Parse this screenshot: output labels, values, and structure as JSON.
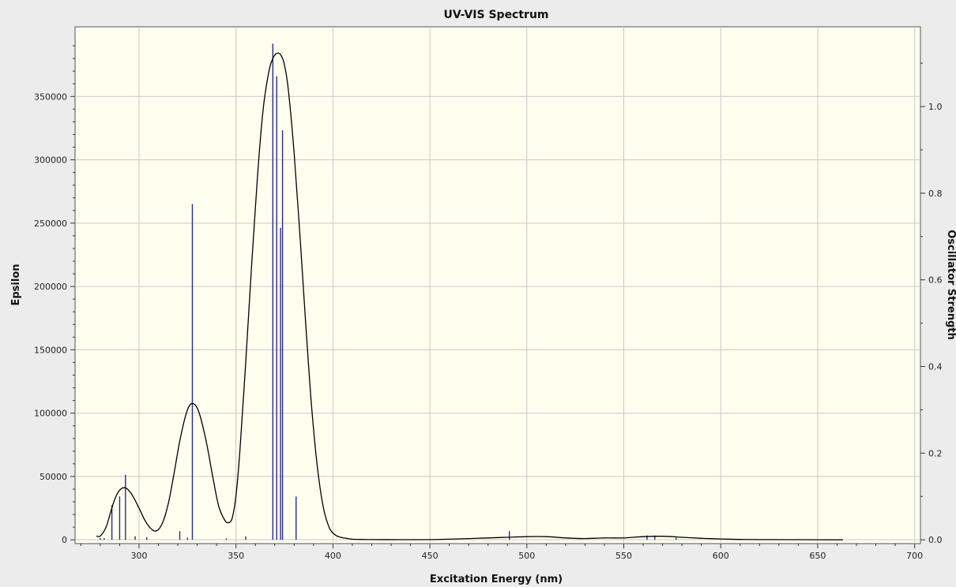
{
  "chart_data": {
    "type": "line",
    "title": "UV-VIS Spectrum",
    "xlabel": "Excitation Energy (nm)",
    "ylabel": "Epsilon",
    "ylabel_right": "Oscillator Strength",
    "xlim": [
      267,
      703
    ],
    "ylim": [
      -3000,
      405000
    ],
    "ylim_right": [
      -0.0088,
      1.184
    ],
    "x_ticks": [
      300,
      350,
      400,
      450,
      500,
      550,
      600,
      650,
      700
    ],
    "y_ticks": [
      0,
      50000,
      100000,
      150000,
      200000,
      250000,
      300000,
      350000
    ],
    "y_ticks_right": [
      0.0,
      0.2,
      0.4,
      0.6,
      0.8,
      1.0
    ],
    "y_ticks_right_labels": [
      "0.0",
      "0.2",
      "0.4",
      "0.6",
      "0.8",
      "1.0"
    ],
    "grid": true,
    "colors": {
      "plot_bg": "#fffff0",
      "curve": "#000000",
      "sticks": "#2a2a8c",
      "grid": "#c8c8c8"
    },
    "series": [
      {
        "kind": "epsilon_curve",
        "x": [
          278,
          280,
          283,
          285,
          287,
          289,
          291,
          293,
          295,
          297,
          300,
          303,
          306,
          309,
          312,
          315,
          318,
          321,
          324,
          326,
          328,
          330,
          332,
          335,
          338,
          341,
          344,
          346,
          348,
          350,
          352,
          355,
          358,
          361,
          364,
          367,
          369,
          371,
          373,
          375,
          377,
          380,
          383,
          386,
          389,
          392,
          395,
          398,
          401,
          404,
          407,
          410,
          415,
          420,
          450,
          480,
          490,
          500,
          510,
          520,
          530,
          540,
          550,
          560,
          570,
          580,
          590,
          600,
          610,
          620,
          640,
          663
        ],
        "y": [
          3000,
          3000,
          10000,
          20000,
          30000,
          37000,
          40500,
          41000,
          38500,
          34000,
          25000,
          15500,
          9000,
          7000,
          13000,
          28000,
          52000,
          78000,
          98000,
          106000,
          107500,
          104000,
          95000,
          75000,
          50000,
          27000,
          16000,
          13500,
          17000,
          35000,
          70000,
          140000,
          215000,
          285000,
          340000,
          370000,
          380000,
          384000,
          383000,
          375000,
          355000,
          305000,
          240000,
          170000,
          105000,
          57000,
          26000,
          10000,
          4000,
          2000,
          1200,
          500,
          300,
          200,
          200,
          1500,
          2000,
          2500,
          2500,
          1500,
          1000,
          1500,
          1500,
          2500,
          2800,
          2000,
          1200,
          700,
          300,
          200,
          100,
          0
        ]
      },
      {
        "kind": "oscillator_sticks",
        "x": [
          280,
          282,
          286,
          290,
          293,
          298,
          304,
          321,
          325,
          327.5,
          345,
          355,
          369,
          371,
          373,
          374,
          381,
          491,
          562,
          566,
          577
        ],
        "y": [
          0.004,
          0.004,
          0.08,
          0.1,
          0.15,
          0.008,
          0.006,
          0.02,
          0.005,
          0.775,
          0.003,
          0.008,
          1.145,
          1.07,
          0.72,
          0.945,
          0.1,
          0.02,
          0.01,
          0.01,
          0.005
        ]
      }
    ]
  }
}
